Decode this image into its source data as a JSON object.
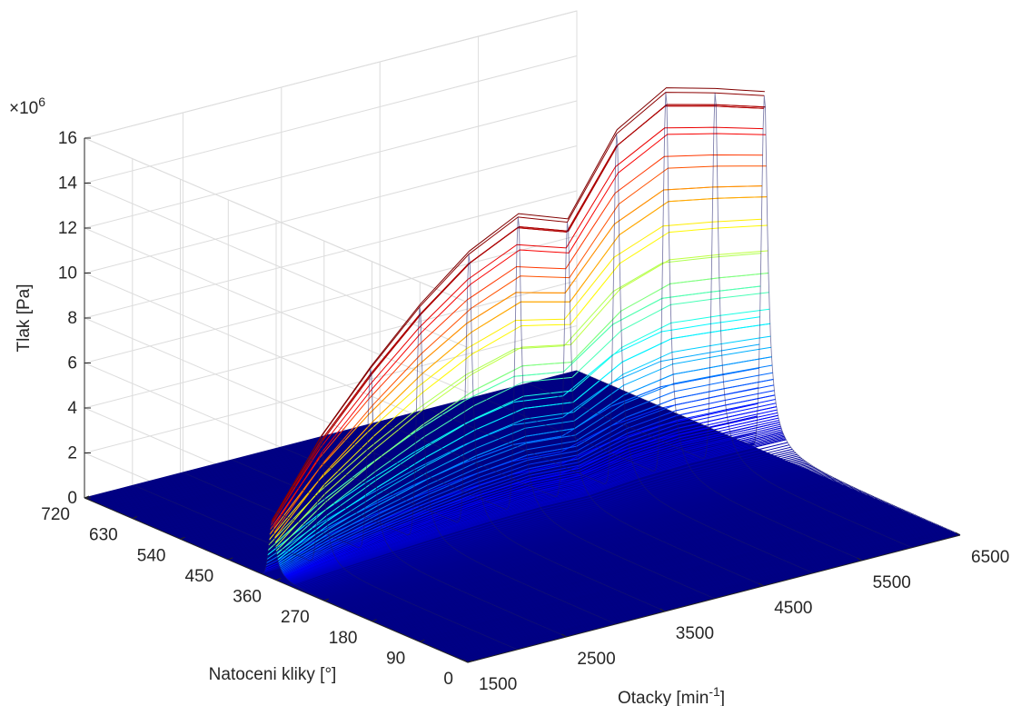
{
  "chart_data": {
    "type": "surface",
    "xlabel": "Natoceni kliky [°]",
    "ylabel": "Otacky [min",
    "ylabel_sup": "-1",
    "ylabel_close": "]",
    "zlabel": "Tlak [Pa]",
    "z_exponent_label": "×10",
    "z_exponent_power": "6",
    "crank_ticks": [
      0,
      90,
      180,
      270,
      360,
      450,
      540,
      630,
      720
    ],
    "rpm_ticks": [
      1500,
      2500,
      3500,
      4500,
      5500,
      6500
    ],
    "pressure_ticks": [
      0,
      2,
      4,
      6,
      8,
      10,
      12,
      14,
      16
    ],
    "crank_range": [
      0,
      720
    ],
    "rpm_range": [
      1500,
      6500
    ],
    "pressure_range": [
      0,
      16
    ],
    "pressure_scale": 1000000,
    "rpm_samples": [
      1500,
      2000,
      2500,
      3000,
      3500,
      4000,
      4500,
      5000,
      5500,
      6000,
      6500
    ],
    "peak_pressure_1e6": [
      2.6,
      5.8,
      8.3,
      10.5,
      12.3,
      13.4,
      12.6,
      16.0,
      17.3,
      16.7,
      16.0
    ],
    "peak_crank_deg": 367,
    "colormap": [
      "#00008f",
      "#0000ff",
      "#00ffff",
      "#ffff00",
      "#ff0000",
      "#800000"
    ],
    "grid": true
  }
}
